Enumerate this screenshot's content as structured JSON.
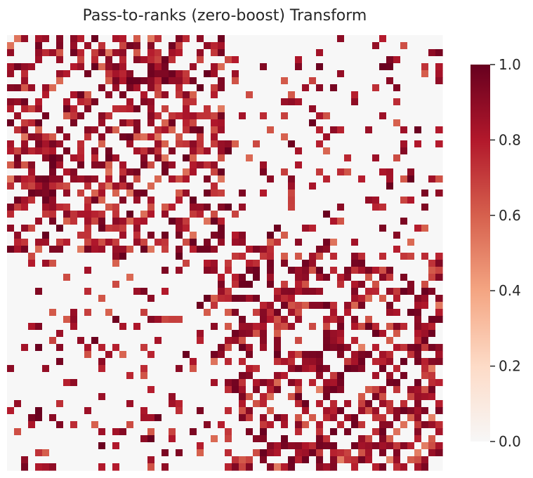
{
  "chart_data": {
    "type": "heatmap",
    "title": "Pass-to-ranks (zero-boost) Transform",
    "xlabel": "",
    "ylabel": "",
    "n": 62,
    "blocks": [
      {
        "start": 0,
        "end": 31
      },
      {
        "start": 31,
        "end": 62
      }
    ],
    "within_block_density": 0.55,
    "between_block_density": 0.16,
    "zero_value": 0.0,
    "colorbar": {
      "min": 0.0,
      "max": 1.0,
      "ticks": [
        0.0,
        0.2,
        0.4,
        0.6,
        0.8,
        1.0
      ],
      "tick_labels": [
        "0.0",
        "0.2",
        "0.4",
        "0.6",
        "0.8",
        "1.0"
      ],
      "colors": [
        "#f7f7f7",
        "#fddbc7",
        "#f4a582",
        "#d6604d",
        "#b2182b",
        "#67001f"
      ],
      "colormap": "RdBu_r (positive half)"
    },
    "grid": false,
    "legend": "colorbar-right"
  }
}
